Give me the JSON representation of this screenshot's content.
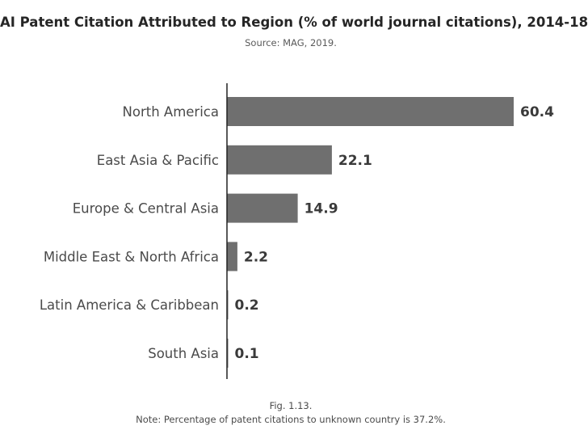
{
  "chart_data": {
    "type": "bar",
    "orientation": "horizontal",
    "title": "AI Patent Citation Attributed to Region (% of world journal citations), 2014-18",
    "subtitle": "Source: MAG, 2019.",
    "categories": [
      "North America",
      "East Asia & Pacific",
      "Europe & Central Asia",
      "Middle East & North Africa",
      "Latin America & Caribbean",
      "South Asia"
    ],
    "values": [
      60.4,
      22.1,
      14.9,
      2.2,
      0.2,
      0.1
    ],
    "value_labels": [
      "60.4",
      "22.1",
      "14.9",
      "2.2",
      "0.2",
      "0.1"
    ],
    "xlim": [
      0,
      60.4
    ],
    "grid": false,
    "legend": "none",
    "bar_color": "#6f6f6f"
  },
  "figure": {
    "number": "Fig. 1.13.",
    "note": "Note: Percentage of patent citations to unknown country is 37.2%."
  }
}
